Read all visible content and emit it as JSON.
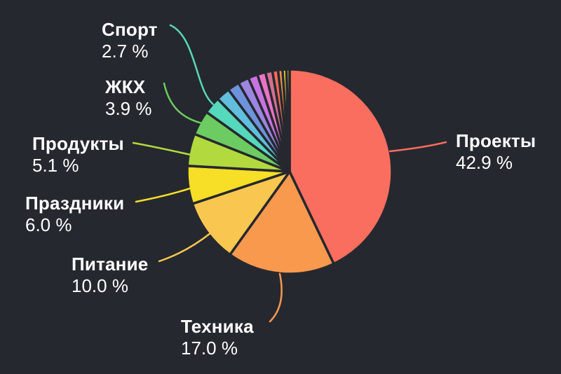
{
  "background_color": "#26282F",
  "text_color": "#FFFFFF",
  "chart_data": {
    "type": "pie",
    "title": "",
    "direction": "clockwise",
    "start_angle_deg": 0,
    "legend_position": "callout-labels",
    "stroke_color": "#26282F",
    "slices": [
      {
        "label": "Проекты",
        "value": 42.9,
        "pct_text": "42.9 %",
        "color": "#FA6E5F"
      },
      {
        "label": "Техника",
        "value": 17.0,
        "pct_text": "17.0 %",
        "color": "#F9994E"
      },
      {
        "label": "Питание",
        "value": 10.0,
        "pct_text": "10.0 %",
        "color": "#F9C74F"
      },
      {
        "label": "Праздники",
        "value": 6.0,
        "pct_text": "6.0 %",
        "color": "#F6DF26"
      },
      {
        "label": "Продукты",
        "value": 5.1,
        "pct_text": "5.1 %",
        "color": "#B2DA3E"
      },
      {
        "label": "ЖКХ",
        "value": 3.9,
        "pct_text": "3.9 %",
        "color": "#6CCC61"
      },
      {
        "label": "Спорт",
        "value": 2.7,
        "pct_text": "2.7 %",
        "color": "#55D8BB"
      },
      {
        "label": null,
        "value": 2.2,
        "color": "#61BEDC"
      },
      {
        "label": null,
        "value": 1.9,
        "color": "#6E93DC"
      },
      {
        "label": null,
        "value": 1.7,
        "color": "#9D85E2"
      },
      {
        "label": null,
        "value": 1.5,
        "color": "#C873E2"
      },
      {
        "label": null,
        "value": 1.3,
        "color": "#E973C6"
      },
      {
        "label": null,
        "value": 1.1,
        "color": "#D4708F"
      },
      {
        "label": null,
        "value": 0.9,
        "color": "#F4695A"
      },
      {
        "label": null,
        "value": 0.7,
        "color": "#F6954B"
      },
      {
        "label": null,
        "value": 0.6,
        "color": "#EFDA40"
      },
      {
        "label": null,
        "value": 0.5,
        "color": "#B9BE3C"
      }
    ]
  }
}
